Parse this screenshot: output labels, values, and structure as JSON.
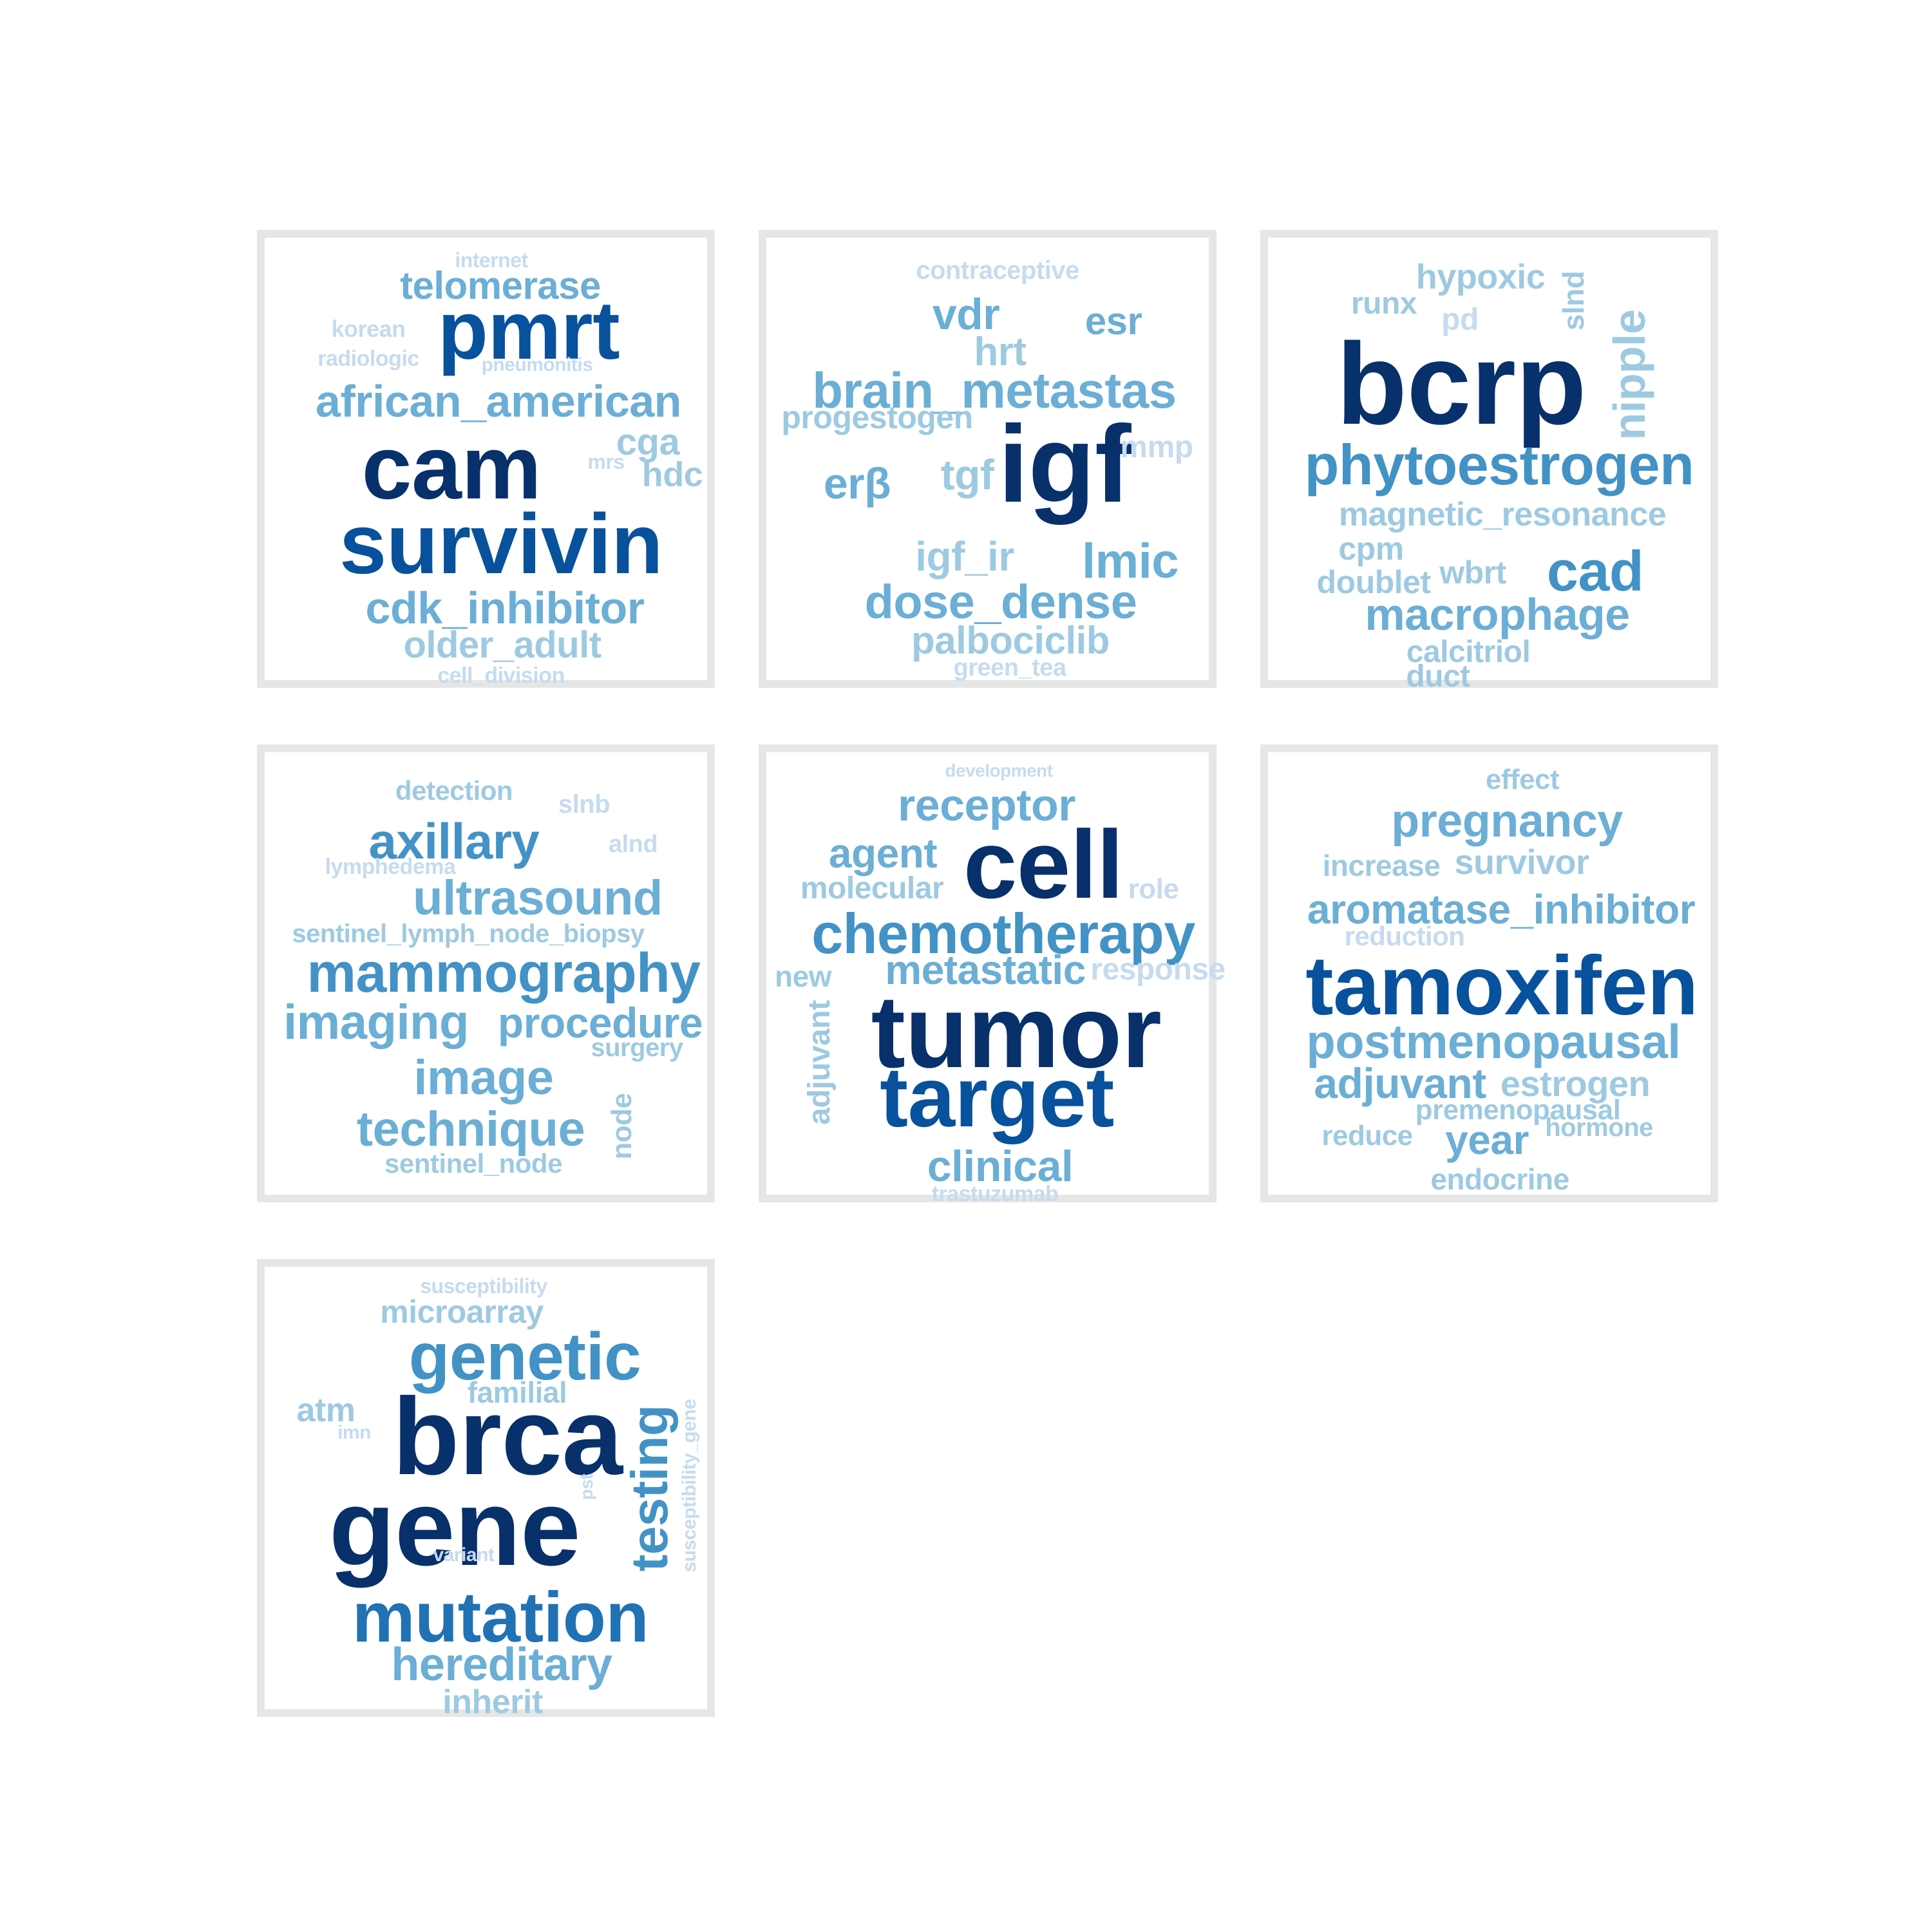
{
  "palette": [
    "#08306b",
    "#08519c",
    "#2171b5",
    "#4292c6",
    "#6baed6",
    "#9ecae1",
    "#c6dbef"
  ],
  "panels": [
    {
      "words": [
        {
          "text": "internet",
          "shade": 6
        },
        {
          "text": "telomerase",
          "shade": 4
        },
        {
          "text": "pmrt",
          "shade": 1
        },
        {
          "text": "korean",
          "shade": 6
        },
        {
          "text": "radiologic",
          "shade": 6
        },
        {
          "text": "pneumonitis",
          "shade": 6
        },
        {
          "text": "african_american",
          "shade": 4
        },
        {
          "text": "cam",
          "shade": 0
        },
        {
          "text": "cga",
          "shade": 5
        },
        {
          "text": "mrs",
          "shade": 6
        },
        {
          "text": "hdc",
          "shade": 5
        },
        {
          "text": "survivin",
          "shade": 1
        },
        {
          "text": "cdk_inhibitor",
          "shade": 4
        },
        {
          "text": "older_adult",
          "shade": 5
        },
        {
          "text": "cell_division",
          "shade": 6
        }
      ]
    },
    {
      "words": [
        {
          "text": "contraceptive",
          "shade": 6
        },
        {
          "text": "vdr",
          "shade": 4
        },
        {
          "text": "esr",
          "shade": 4
        },
        {
          "text": "hrt",
          "shade": 5
        },
        {
          "text": "brain_metastas",
          "shade": 4
        },
        {
          "text": "progestogen",
          "shade": 5
        },
        {
          "text": "igf",
          "shade": 0
        },
        {
          "text": "mmp",
          "shade": 6
        },
        {
          "text": "erβ",
          "shade": 4
        },
        {
          "text": "tgf",
          "shade": 5
        },
        {
          "text": "igf_ir",
          "shade": 5
        },
        {
          "text": "lmic",
          "shade": 4
        },
        {
          "text": "dose_dense",
          "shade": 4
        },
        {
          "text": "palbociclib",
          "shade": 5
        },
        {
          "text": "green_tea",
          "shade": 6
        }
      ]
    },
    {
      "words": [
        {
          "text": "hypoxic",
          "shade": 5
        },
        {
          "text": "runx",
          "shade": 5
        },
        {
          "text": "pd",
          "shade": 6
        },
        {
          "text": "slnd",
          "shade": 5
        },
        {
          "text": "bcrp",
          "shade": 0
        },
        {
          "text": "nipple",
          "shade": 5
        },
        {
          "text": "phytoestrogen",
          "shade": 3
        },
        {
          "text": "magnetic_resonance",
          "shade": 5
        },
        {
          "text": "cpm",
          "shade": 5
        },
        {
          "text": "doublet",
          "shade": 5
        },
        {
          "text": "wbrt",
          "shade": 5
        },
        {
          "text": "cad",
          "shade": 3
        },
        {
          "text": "macrophage",
          "shade": 4
        },
        {
          "text": "calcitriol",
          "shade": 5
        },
        {
          "text": "duct",
          "shade": 5
        }
      ]
    },
    {
      "words": [
        {
          "text": "detection",
          "shade": 5
        },
        {
          "text": "slnb",
          "shade": 6
        },
        {
          "text": "axillary",
          "shade": 3
        },
        {
          "text": "alnd",
          "shade": 6
        },
        {
          "text": "lymphedema",
          "shade": 6
        },
        {
          "text": "ultrasound",
          "shade": 4
        },
        {
          "text": "sentinel_lymph_node_biopsy",
          "shade": 5
        },
        {
          "text": "mammography",
          "shade": 3
        },
        {
          "text": "imaging",
          "shade": 4
        },
        {
          "text": "procedure",
          "shade": 4
        },
        {
          "text": "surgery",
          "shade": 5
        },
        {
          "text": "image",
          "shade": 4
        },
        {
          "text": "technique",
          "shade": 4
        },
        {
          "text": "node",
          "shade": 5
        },
        {
          "text": "sentinel_node",
          "shade": 5
        }
      ]
    },
    {
      "words": [
        {
          "text": "development",
          "shade": 6
        },
        {
          "text": "receptor",
          "shade": 4
        },
        {
          "text": "agent",
          "shade": 4
        },
        {
          "text": "cell",
          "shade": 0
        },
        {
          "text": "molecular",
          "shade": 5
        },
        {
          "text": "role",
          "shade": 6
        },
        {
          "text": "chemotherapy",
          "shade": 3
        },
        {
          "text": "new",
          "shade": 5
        },
        {
          "text": "metastatic",
          "shade": 4
        },
        {
          "text": "response",
          "shade": 6
        },
        {
          "text": "adjuvant",
          "shade": 5
        },
        {
          "text": "tumor",
          "shade": 0
        },
        {
          "text": "target",
          "shade": 1
        },
        {
          "text": "clinical",
          "shade": 4
        },
        {
          "text": "trastuzumab",
          "shade": 6
        }
      ]
    },
    {
      "words": [
        {
          "text": "effect",
          "shade": 5
        },
        {
          "text": "pregnancy",
          "shade": 4
        },
        {
          "text": "increase",
          "shade": 5
        },
        {
          "text": "survivor",
          "shade": 5
        },
        {
          "text": "aromatase_inhibitor",
          "shade": 4
        },
        {
          "text": "reduction",
          "shade": 6
        },
        {
          "text": "tamoxifen",
          "shade": 1
        },
        {
          "text": "postmenopausal",
          "shade": 4
        },
        {
          "text": "adjuvant",
          "shade": 4
        },
        {
          "text": "estrogen",
          "shade": 5
        },
        {
          "text": "premenopausal",
          "shade": 5
        },
        {
          "text": "reduce",
          "shade": 5
        },
        {
          "text": "year",
          "shade": 4
        },
        {
          "text": "hormone",
          "shade": 5
        },
        {
          "text": "endocrine",
          "shade": 5
        }
      ]
    },
    {
      "words": [
        {
          "text": "susceptibility",
          "shade": 6
        },
        {
          "text": "microarray",
          "shade": 5
        },
        {
          "text": "genetic",
          "shade": 3
        },
        {
          "text": "familial",
          "shade": 5
        },
        {
          "text": "atm",
          "shade": 5
        },
        {
          "text": "imn",
          "shade": 6
        },
        {
          "text": "brca",
          "shade": 0
        },
        {
          "text": "testing",
          "shade": 3
        },
        {
          "text": "susceptibility_gene",
          "shade": 6
        },
        {
          "text": "pst",
          "shade": 6
        },
        {
          "text": "gene",
          "shade": 0
        },
        {
          "text": "variant",
          "shade": 6
        },
        {
          "text": "mutation",
          "shade": 2
        },
        {
          "text": "hereditary",
          "shade": 4
        },
        {
          "text": "inherit",
          "shade": 5
        }
      ]
    }
  ]
}
